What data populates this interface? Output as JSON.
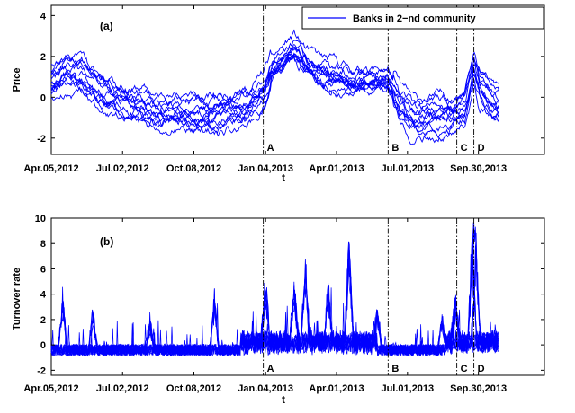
{
  "chart_data": [
    {
      "type": "line",
      "panel_label": "(a)",
      "xlabel": "t",
      "ylabel": "Price",
      "ylim": [
        -2.8,
        4.5
      ],
      "xlim": [
        0,
        130
      ],
      "x_ticks": [
        {
          "t": 0,
          "label": "Apr.05,2012"
        },
        {
          "t": 18.8,
          "label": "Jul.02,2012"
        },
        {
          "t": 37.6,
          "label": "Oct.08,2012"
        },
        {
          "t": 56.5,
          "label": "Jan.04,2013"
        },
        {
          "t": 75.2,
          "label": "Apr.01,2013"
        },
        {
          "t": 93.9,
          "label": "Jul.01,2013"
        },
        {
          "t": 112.6,
          "label": "Sep.30,2013"
        }
      ],
      "y_ticks": [
        -2,
        0,
        2,
        4
      ],
      "legend": {
        "label": "Banks in 2−nd community",
        "position": "top-right"
      },
      "event_lines": [
        {
          "t": 55.9,
          "label": "A"
        },
        {
          "t": 88.8,
          "label": "B"
        },
        {
          "t": 106.9,
          "label": "C"
        },
        {
          "t": 111.4,
          "label": "D"
        }
      ],
      "series_shape": {
        "knots_t": [
          0,
          4,
          8,
          12,
          16,
          20,
          24,
          28,
          32,
          36,
          40,
          44,
          48,
          52,
          55.9,
          58,
          62,
          64,
          68,
          72,
          76,
          80,
          84,
          88.8,
          92,
          96,
          100,
          104,
          106.9,
          109,
          110,
          111.4,
          113,
          116,
          118
        ],
        "knots_value": [
          0.8,
          1.2,
          1.0,
          0.3,
          0.0,
          -0.3,
          -0.4,
          -0.9,
          -0.9,
          -0.9,
          -1.0,
          -0.9,
          -0.6,
          -0.5,
          0.3,
          1.2,
          2.1,
          2.5,
          1.6,
          1.2,
          1.0,
          0.8,
          0.9,
          0.9,
          -0.4,
          -1.2,
          -1.0,
          -0.9,
          -0.8,
          -0.5,
          0.3,
          1.6,
          0.5,
          -0.2,
          -0.4
        ],
        "offsets": [
          0.9,
          0.6,
          0.35,
          0.15,
          0.0,
          -0.15,
          -0.3,
          -0.45,
          -0.6,
          -0.8,
          0.45,
          -0.25
        ],
        "noise": 0.22,
        "seed": 11
      }
    },
    {
      "type": "line",
      "panel_label": "(b)",
      "xlabel": "t",
      "ylabel": "Turnover rate",
      "ylim": [
        -2.4,
        10
      ],
      "xlim": [
        0,
        130
      ],
      "x_ticks": [
        {
          "t": 0,
          "label": "Apr.05,2012"
        },
        {
          "t": 18.8,
          "label": "Jul.02,2012"
        },
        {
          "t": 37.6,
          "label": "Oct.08,2012"
        },
        {
          "t": 56.5,
          "label": "Jan.04,2013"
        },
        {
          "t": 75.2,
          "label": "Apr.01,2013"
        },
        {
          "t": 93.9,
          "label": "Jul.01,2013"
        },
        {
          "t": 112.6,
          "label": "Sep.30,2013"
        }
      ],
      "y_ticks": [
        -2,
        0,
        2,
        4,
        6,
        8,
        10
      ],
      "event_lines": [
        {
          "t": 55.9,
          "label": "A"
        },
        {
          "t": 88.8,
          "label": "B"
        },
        {
          "t": 106.9,
          "label": "C"
        },
        {
          "t": 111.4,
          "label": "D"
        }
      ],
      "series_shape": {
        "base_level": -0.4,
        "spike_count": 14,
        "noise": 0.45,
        "seed": 29,
        "peaks": [
          {
            "t": 3,
            "value": 4.2
          },
          {
            "t": 11,
            "value": 3.1
          },
          {
            "t": 26,
            "value": 2.2
          },
          {
            "t": 43,
            "value": 4.2
          },
          {
            "t": 56.5,
            "value": 5.5
          },
          {
            "t": 64,
            "value": 4.6
          },
          {
            "t": 67,
            "value": 6.2
          },
          {
            "t": 73,
            "value": 4.5
          },
          {
            "t": 78.5,
            "value": 8.7
          },
          {
            "t": 86,
            "value": 2.8
          },
          {
            "t": 103,
            "value": 2.5
          },
          {
            "t": 106.5,
            "value": 3.2
          },
          {
            "t": 111,
            "value": 8.9
          },
          {
            "t": 112,
            "value": 8.2
          }
        ]
      }
    }
  ]
}
